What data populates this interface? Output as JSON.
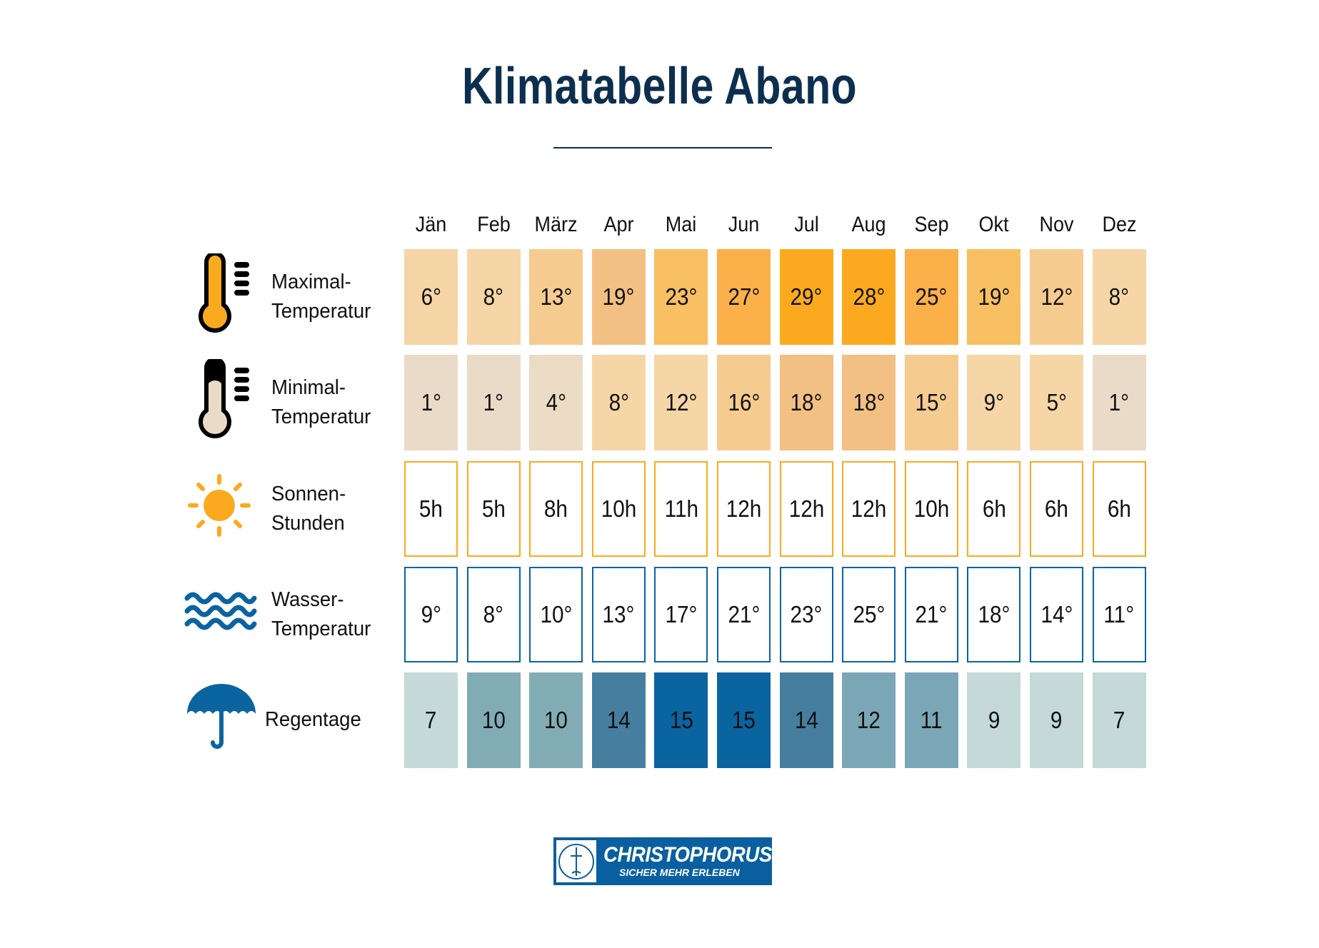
{
  "title": "Klimatabelle Abano",
  "months": [
    "Jän",
    "Feb",
    "März",
    "Apr",
    "Mai",
    "Jun",
    "Jul",
    "Aug",
    "Sep",
    "Okt",
    "Nov",
    "Dez"
  ],
  "rows": [
    {
      "label_line1": "Maximal-",
      "label_line2": "Temperatur",
      "icon": "thermometer-high-icon",
      "style": "fill",
      "values": [
        "6°",
        "8°",
        "13°",
        "19°",
        "23°",
        "27°",
        "29°",
        "28°",
        "25°",
        "19°",
        "12°",
        "8°"
      ],
      "colors": [
        "#f6d6a6",
        "#f6d6a6",
        "#f6cb90",
        "#f2c083",
        "#f8bf63",
        "#fbb04a",
        "#fbaa1f",
        "#fbaa1f",
        "#fbb04a",
        "#f8bf63",
        "#f6cb90",
        "#f6d6a6"
      ]
    },
    {
      "label_line1": "Minimal-",
      "label_line2": "Temperatur",
      "icon": "thermometer-low-icon",
      "style": "fill",
      "values": [
        "1°",
        "1°",
        "4°",
        "8°",
        "12°",
        "16°",
        "18°",
        "18°",
        "15°",
        "9°",
        "5°",
        "1°"
      ],
      "colors": [
        "#eadbc9",
        "#eadbc9",
        "#ecdbc5",
        "#f6d6a6",
        "#f6d6a6",
        "#f6cb90",
        "#f2c083",
        "#f2c083",
        "#f6cb90",
        "#f6d6a6",
        "#f6d6a6",
        "#eadbc9"
      ]
    },
    {
      "label_line1": "Sonnen-",
      "label_line2": "Stunden",
      "icon": "sun-icon",
      "style": "outline",
      "border": "#fbaa1f",
      "values": [
        "5h",
        "5h",
        "8h",
        "10h",
        "11h",
        "12h",
        "12h",
        "12h",
        "10h",
        "6h",
        "6h",
        "6h"
      ]
    },
    {
      "label_line1": "Wasser-",
      "label_line2": "Temperatur",
      "icon": "waves-icon",
      "style": "outline",
      "border": "#0a64a0",
      "values": [
        "9°",
        "8°",
        "10°",
        "13°",
        "17°",
        "21°",
        "23°",
        "25°",
        "21°",
        "18°",
        "14°",
        "11°"
      ]
    },
    {
      "label_line1": "Regentage",
      "label_line2": "",
      "icon": "umbrella-icon",
      "style": "fill",
      "values": [
        "7",
        "10",
        "10",
        "14",
        "15",
        "15",
        "14",
        "12",
        "11",
        "9",
        "9",
        "7"
      ],
      "colors": [
        "#c4d9d8",
        "#82acb4",
        "#82acb4",
        "#467e9f",
        "#0a64a0",
        "#0a64a0",
        "#467e9f",
        "#7aa6b5",
        "#7aa6b5",
        "#c4d9d8",
        "#c4d9d8",
        "#c4d9d8"
      ]
    }
  ],
  "logo": {
    "name": "CHRISTOPHORUS",
    "slogan": "SICHER MEHR ERLEBEN",
    "color": "#0a5fa0"
  }
}
